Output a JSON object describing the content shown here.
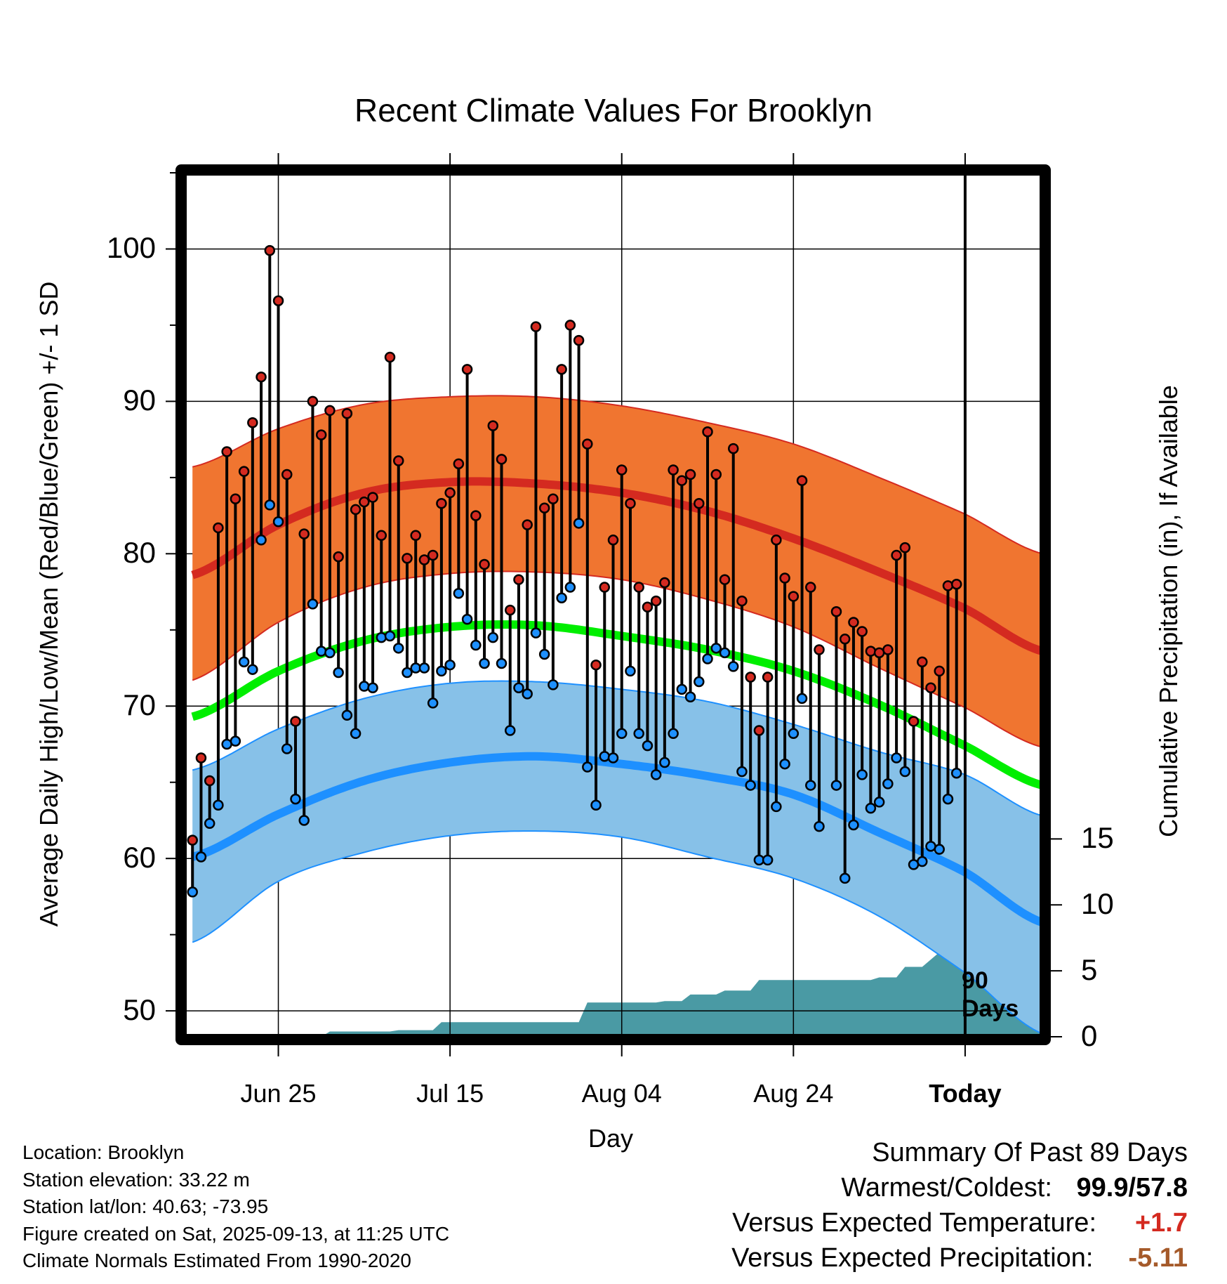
{
  "colors": {
    "high_band": "#f07530",
    "high_mean": "#d42a20",
    "low_band": "#87c1e8",
    "low_mean": "#1e90ff",
    "mean": "#00ee00",
    "precip": "#4a9aa4",
    "warm": "#d42a20",
    "dry": "#a55a2a"
  },
  "chart_data": {
    "type": "line",
    "title": "Recent Climate Values For Brooklyn",
    "xlabel": "Day",
    "ylabel": "Average Daily High/Low/Mean (Red/Blue/Green) +/- 1 SD",
    "y2label": "Cumulative Precipitation (in), If Available",
    "ylim": [
      48.3,
      105
    ],
    "yticks": [
      50,
      60,
      70,
      80,
      90,
      100
    ],
    "y2ticks": [
      0,
      5,
      10,
      15
    ],
    "y2lim": [
      0,
      65.5
    ],
    "x_axis": "days relative to today",
    "xlim": [
      -91,
      9
    ],
    "xticks": [
      {
        "day": -80,
        "label": "Jun 25"
      },
      {
        "day": -60,
        "label": "Jul 15"
      },
      {
        "day": -40,
        "label": "Aug 04"
      },
      {
        "day": -20,
        "label": "Aug 24"
      },
      {
        "day": 0,
        "label": "Today"
      }
    ],
    "normals_day": [
      -90,
      -80,
      -70,
      -60,
      -50,
      -40,
      -30,
      -20,
      -10,
      0,
      9
    ],
    "normal_high": [
      78.6,
      81.9,
      84.0,
      84.7,
      84.6,
      84.0,
      82.8,
      81.0,
      78.8,
      76.4,
      73.6
    ],
    "normal_high_upper": [
      85.7,
      88.2,
      89.8,
      90.3,
      90.3,
      89.7,
      88.6,
      87.2,
      85.0,
      82.6,
      80.0
    ],
    "normal_high_lower": [
      71.7,
      75.5,
      77.8,
      78.7,
      78.8,
      78.3,
      77.0,
      75.2,
      72.5,
      69.9,
      67.3
    ],
    "normal_mean": [
      69.3,
      72.3,
      74.3,
      75.2,
      75.3,
      74.6,
      73.7,
      72.3,
      70.1,
      67.4,
      64.8
    ],
    "normal_low": [
      60.1,
      62.9,
      65.1,
      66.3,
      66.7,
      66.2,
      65.4,
      64.2,
      61.7,
      59.1,
      55.8
    ],
    "normal_low_upper": [
      65.8,
      68.5,
      70.5,
      71.5,
      71.6,
      71.1,
      70.3,
      68.8,
      67.0,
      65.5,
      62.8
    ],
    "normal_low_lower": [
      54.5,
      58.5,
      60.4,
      61.5,
      61.8,
      61.4,
      60.1,
      58.7,
      56.2,
      52.5,
      48.5
    ],
    "precip_day": [
      -90,
      -75,
      -74,
      -67,
      -66,
      -62,
      -61,
      -45,
      -44,
      -36,
      -35,
      -33,
      -32,
      -29,
      -28,
      -25,
      -24,
      -11,
      -10,
      -8,
      -7,
      -5,
      -3,
      1,
      9
    ],
    "precip_cum": [
      0.0,
      0.0,
      0.4,
      0.4,
      0.5,
      0.5,
      1.1,
      1.1,
      2.6,
      2.6,
      2.7,
      2.7,
      3.2,
      3.2,
      3.5,
      3.5,
      4.3,
      4.3,
      4.5,
      4.5,
      5.3,
      5.3,
      6.4,
      6.4,
      6.4
    ],
    "series": [
      {
        "name": "Daily High",
        "day_start": -90,
        "values": [
          61.2,
          66.6,
          65.1,
          81.7,
          86.7,
          83.6,
          85.4,
          88.6,
          91.6,
          99.9,
          96.6,
          85.2,
          69.0,
          81.3,
          90.0,
          87.8,
          89.4,
          79.8,
          89.2,
          82.9,
          83.4,
          83.7,
          81.2,
          92.9,
          86.1,
          79.7,
          81.2,
          79.6,
          79.9,
          83.3,
          84.0,
          85.9,
          92.1,
          82.5,
          79.3,
          88.4,
          86.2,
          76.3,
          78.3,
          81.9,
          94.9,
          83.0,
          83.6,
          92.1,
          95.0,
          94.0,
          87.2,
          72.7,
          77.8,
          80.9,
          85.5,
          83.3,
          77.8,
          76.5,
          76.9,
          78.1,
          85.5,
          84.8,
          85.2,
          83.3,
          88.0,
          85.2,
          78.3,
          86.9,
          76.9,
          71.9,
          68.4,
          71.9,
          80.9,
          78.4,
          77.2,
          84.8,
          77.8,
          73.7,
          null,
          76.2,
          74.4,
          75.5,
          74.9,
          73.6,
          73.5,
          73.7,
          79.9,
          80.4,
          69.0,
          72.9,
          71.2,
          72.3,
          77.9,
          78.0
        ]
      },
      {
        "name": "Daily Low",
        "day_start": -90,
        "values": [
          57.8,
          60.1,
          62.3,
          63.5,
          67.5,
          67.7,
          72.9,
          72.4,
          80.9,
          83.2,
          82.1,
          67.2,
          63.9,
          62.5,
          76.7,
          73.6,
          73.5,
          72.2,
          69.4,
          68.2,
          71.3,
          71.2,
          74.5,
          74.6,
          73.8,
          72.2,
          72.5,
          72.5,
          70.2,
          72.3,
          72.7,
          77.4,
          75.7,
          74.0,
          72.8,
          74.5,
          72.8,
          68.4,
          71.2,
          70.8,
          74.8,
          73.4,
          71.4,
          77.1,
          77.8,
          82.0,
          66.0,
          63.5,
          66.7,
          66.6,
          68.2,
          72.3,
          68.2,
          67.4,
          65.5,
          66.3,
          68.2,
          71.1,
          70.6,
          71.6,
          73.1,
          73.8,
          73.5,
          72.6,
          65.7,
          64.8,
          59.9,
          59.9,
          63.4,
          66.2,
          68.2,
          70.5,
          64.8,
          62.1,
          null,
          64.8,
          58.7,
          62.2,
          65.5,
          63.3,
          63.7,
          64.9,
          66.6,
          65.7,
          59.6,
          59.8,
          60.8,
          60.6,
          63.9,
          65.6
        ]
      }
    ]
  },
  "labels": {
    "today_days": "90",
    "today_days_unit": "Days"
  },
  "meta": {
    "location": "Location: Brooklyn",
    "elevation": "Station elevation: 33.22 m",
    "latlon": "Station lat/lon: 40.63; -73.95",
    "created": "Figure created on Sat, 2025-09-13, at 11:25 UTC",
    "normals": "Climate Normals Estimated From 1990-2020"
  },
  "summary": {
    "heading": "Summary Of Past 89 Days",
    "warm_cold_label": "Warmest/Coldest:",
    "warmest": "99.9",
    "coldest": "57.8",
    "temp_label": "Versus Expected Temperature:",
    "temp_value": "+1.7",
    "precip_label": "Versus Expected Precipitation:",
    "precip_value": "-5.11"
  }
}
